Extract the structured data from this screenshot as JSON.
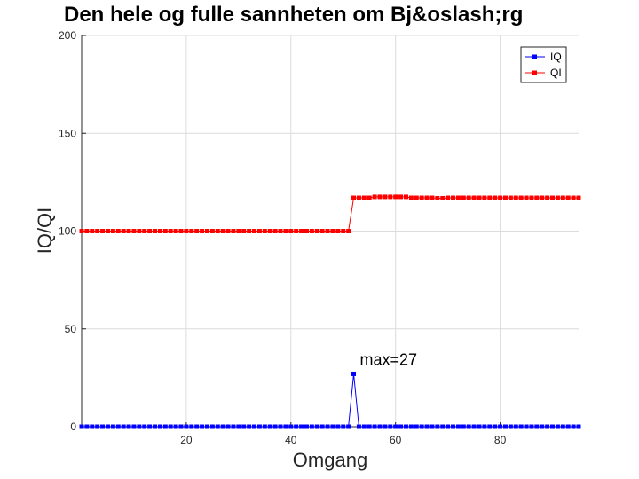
{
  "chart_data": {
    "type": "line",
    "title": "Den hele og fulle sannheten om Bj&oslash;rg",
    "xlabel": "Omgang",
    "ylabel": "IQ/QI",
    "xlim": [
      0,
      95
    ],
    "ylim": [
      0,
      200
    ],
    "xticks": [
      20,
      40,
      60,
      80
    ],
    "yticks": [
      0,
      50,
      100,
      150,
      200
    ],
    "grid": true,
    "legend_position": "top-right",
    "x": [
      0,
      1,
      2,
      3,
      4,
      5,
      6,
      7,
      8,
      9,
      10,
      11,
      12,
      13,
      14,
      15,
      16,
      17,
      18,
      19,
      20,
      21,
      22,
      23,
      24,
      25,
      26,
      27,
      28,
      29,
      30,
      31,
      32,
      33,
      34,
      35,
      36,
      37,
      38,
      39,
      40,
      41,
      42,
      43,
      44,
      45,
      46,
      47,
      48,
      49,
      50,
      51,
      52,
      53,
      54,
      55,
      56,
      57,
      58,
      59,
      60,
      61,
      62,
      63,
      64,
      65,
      66,
      67,
      68,
      69,
      70,
      71,
      72,
      73,
      74,
      75,
      76,
      77,
      78,
      79,
      80,
      81,
      82,
      83,
      84,
      85,
      86,
      87,
      88,
      89,
      90,
      91,
      92,
      93,
      94,
      95
    ],
    "series": [
      {
        "name": "IQ",
        "color": "#0000ff",
        "values": [
          0,
          0,
          0,
          0,
          0,
          0,
          0,
          0,
          0,
          0,
          0,
          0,
          0,
          0,
          0,
          0,
          0,
          0,
          0,
          0,
          0,
          0,
          0,
          0,
          0,
          0,
          0,
          0,
          0,
          0,
          0,
          0,
          0,
          0,
          0,
          0,
          0,
          0,
          0,
          0,
          0,
          0,
          0,
          0,
          0,
          0,
          0,
          0,
          0,
          0,
          0,
          0,
          27,
          0,
          0,
          0,
          0,
          0,
          0,
          0,
          0,
          0,
          0,
          0,
          0,
          0,
          0,
          0,
          0,
          0,
          0,
          0,
          0,
          0,
          0,
          0,
          0,
          0,
          0,
          0,
          0,
          0,
          0,
          0,
          0,
          0,
          0,
          0,
          0,
          0,
          0,
          0,
          0,
          0,
          0,
          0
        ]
      },
      {
        "name": "QI",
        "color": "#ff0000",
        "values": [
          100,
          100,
          100,
          100,
          100,
          100,
          100,
          100,
          100,
          100,
          100,
          100,
          100,
          100,
          100,
          100,
          100,
          100,
          100,
          100,
          100,
          100,
          100,
          100,
          100,
          100,
          100,
          100,
          100,
          100,
          100,
          100,
          100,
          100,
          100,
          100,
          100,
          100,
          100,
          100,
          100,
          100,
          100,
          100,
          100,
          100,
          100,
          100,
          100,
          100,
          100,
          100,
          117,
          117,
          117,
          117,
          117.5,
          117.5,
          117.5,
          117.5,
          117.5,
          117.5,
          117.5,
          117,
          117,
          117,
          117,
          117,
          116.8,
          116.8,
          117,
          117,
          117,
          117,
          117,
          117,
          117,
          117,
          117,
          117,
          117,
          117,
          117,
          117,
          117,
          117,
          117,
          117,
          117,
          117,
          117,
          117,
          117,
          117,
          117,
          117
        ]
      }
    ],
    "annotations": [
      {
        "text": "max=27",
        "x": 52,
        "y": 27
      }
    ]
  }
}
